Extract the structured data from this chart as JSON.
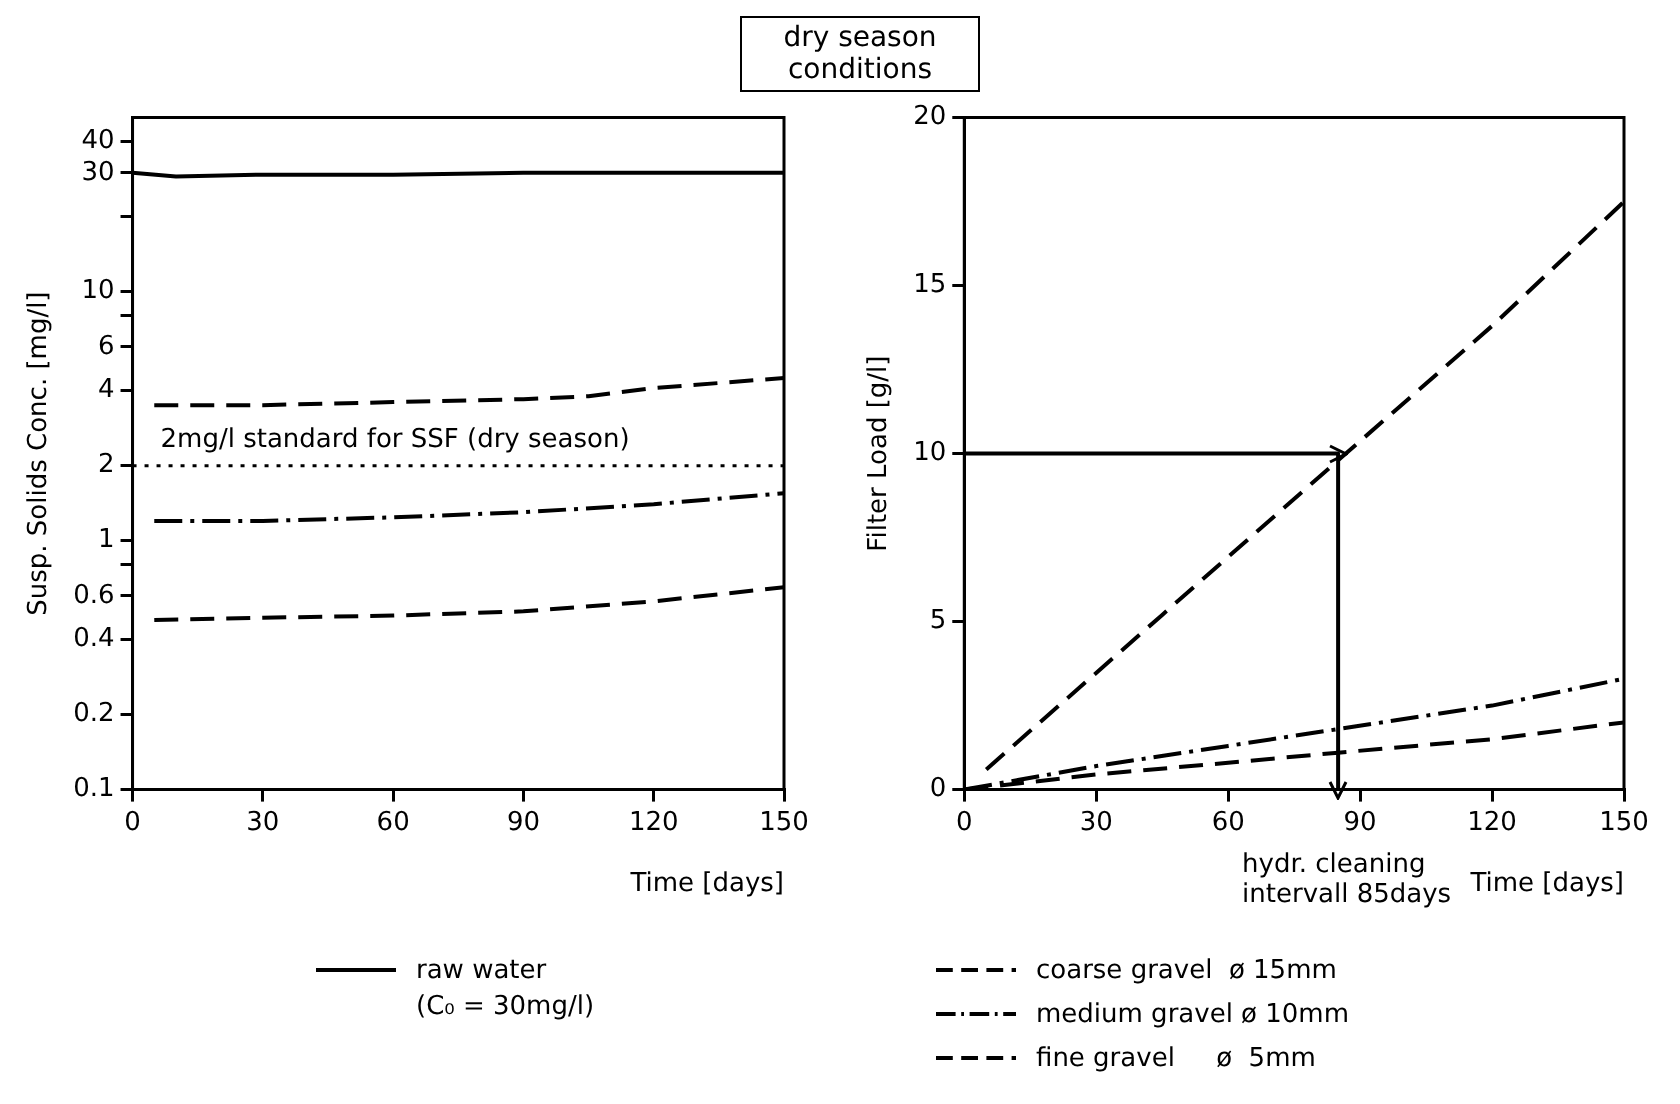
{
  "chart_data": [
    {
      "type": "line",
      "title": "dry season conditions",
      "ylabel": "Susp. Solids Conc. [mg/l]",
      "xlabel": "Time [days]",
      "log": "y",
      "xlim": [
        0,
        150
      ],
      "xticks": [
        0,
        30,
        60,
        90,
        120,
        150
      ],
      "ylim": [
        0.1,
        50
      ],
      "yticks": [
        0.1,
        0.2,
        0.4,
        0.6,
        {
          "value": 0.8,
          "label": null
        },
        1,
        2,
        4,
        6,
        {
          "value": 8,
          "label": null
        },
        10,
        {
          "value": 20,
          "label": null
        },
        30,
        40
      ],
      "grid": false,
      "legend": "bottom",
      "marker": "none",
      "series": [
        {
          "name": "raw water",
          "color": "#000000",
          "line_style": "solid",
          "x": [
            0,
            10,
            30,
            60,
            90,
            120,
            150
          ],
          "values": [
            30,
            29,
            29.5,
            29.5,
            30,
            30,
            30
          ]
        },
        {
          "color": "#000000",
          "line_style": "dashed",
          "x": [
            5,
            30,
            60,
            90,
            105,
            120,
            150
          ],
          "values": [
            3.5,
            3.5,
            3.6,
            3.7,
            3.8,
            4.1,
            4.5
          ]
        },
        {
          "color": "#000000",
          "line_style": "dashdot",
          "x": [
            5,
            30,
            60,
            90,
            120,
            150
          ],
          "values": [
            1.2,
            1.2,
            1.24,
            1.3,
            1.4,
            1.55
          ]
        },
        {
          "color": "#000000",
          "line_style": "dashed",
          "x": [
            5,
            30,
            60,
            90,
            120,
            150
          ],
          "values": [
            0.48,
            0.49,
            0.5,
            0.52,
            0.57,
            0.65
          ]
        }
      ],
      "ref_lines": [
        {
          "axis": "y",
          "value": 2,
          "label": "2mg/l standard for SSF (dry season)",
          "line_style": "dotted",
          "color": "#000000"
        }
      ],
      "annotations": [
        "(C₀ = 30mg/l)"
      ]
    },
    {
      "type": "line",
      "ylabel": "Filter Load [g/l]",
      "xlabel": "Time [days]",
      "xlim": [
        0,
        150
      ],
      "xticks": [
        0,
        30,
        60,
        90,
        120,
        150
      ],
      "ylim": [
        0,
        20
      ],
      "yticks": [
        0,
        5,
        10,
        15,
        20
      ],
      "grid": false,
      "legend": "bottom",
      "series": [
        {
          "name": "coarse gravel  ø 15mm",
          "color": "#000000",
          "line_style": "dashed",
          "x": [
            5,
            45,
            85,
            120,
            150
          ],
          "values": [
            0.6,
            5.2,
            9.8,
            13.8,
            17.5
          ]
        },
        {
          "name": "medium gravel ø 10mm",
          "color": "#000000",
          "line_style": "dashdot",
          "x": [
            0,
            30,
            60,
            85,
            120,
            150
          ],
          "values": [
            0,
            0.7,
            1.3,
            1.8,
            2.5,
            3.3
          ]
        },
        {
          "name": "fine gravel     ø  5mm",
          "color": "#000000",
          "line_style": "dashed",
          "x": [
            0,
            30,
            60,
            85,
            120,
            150
          ],
          "values": [
            0,
            0.45,
            0.8,
            1.1,
            1.5,
            2.0
          ]
        },
        {
          "color": "#000000",
          "line_style": "solid",
          "x": [
            0,
            85,
            85
          ],
          "values": [
            10,
            10,
            0
          ]
        }
      ],
      "annotations": [
        {
          "text": "hydr. cleaning intervall 85days",
          "x": 85,
          "y": 0
        }
      ]
    }
  ]
}
